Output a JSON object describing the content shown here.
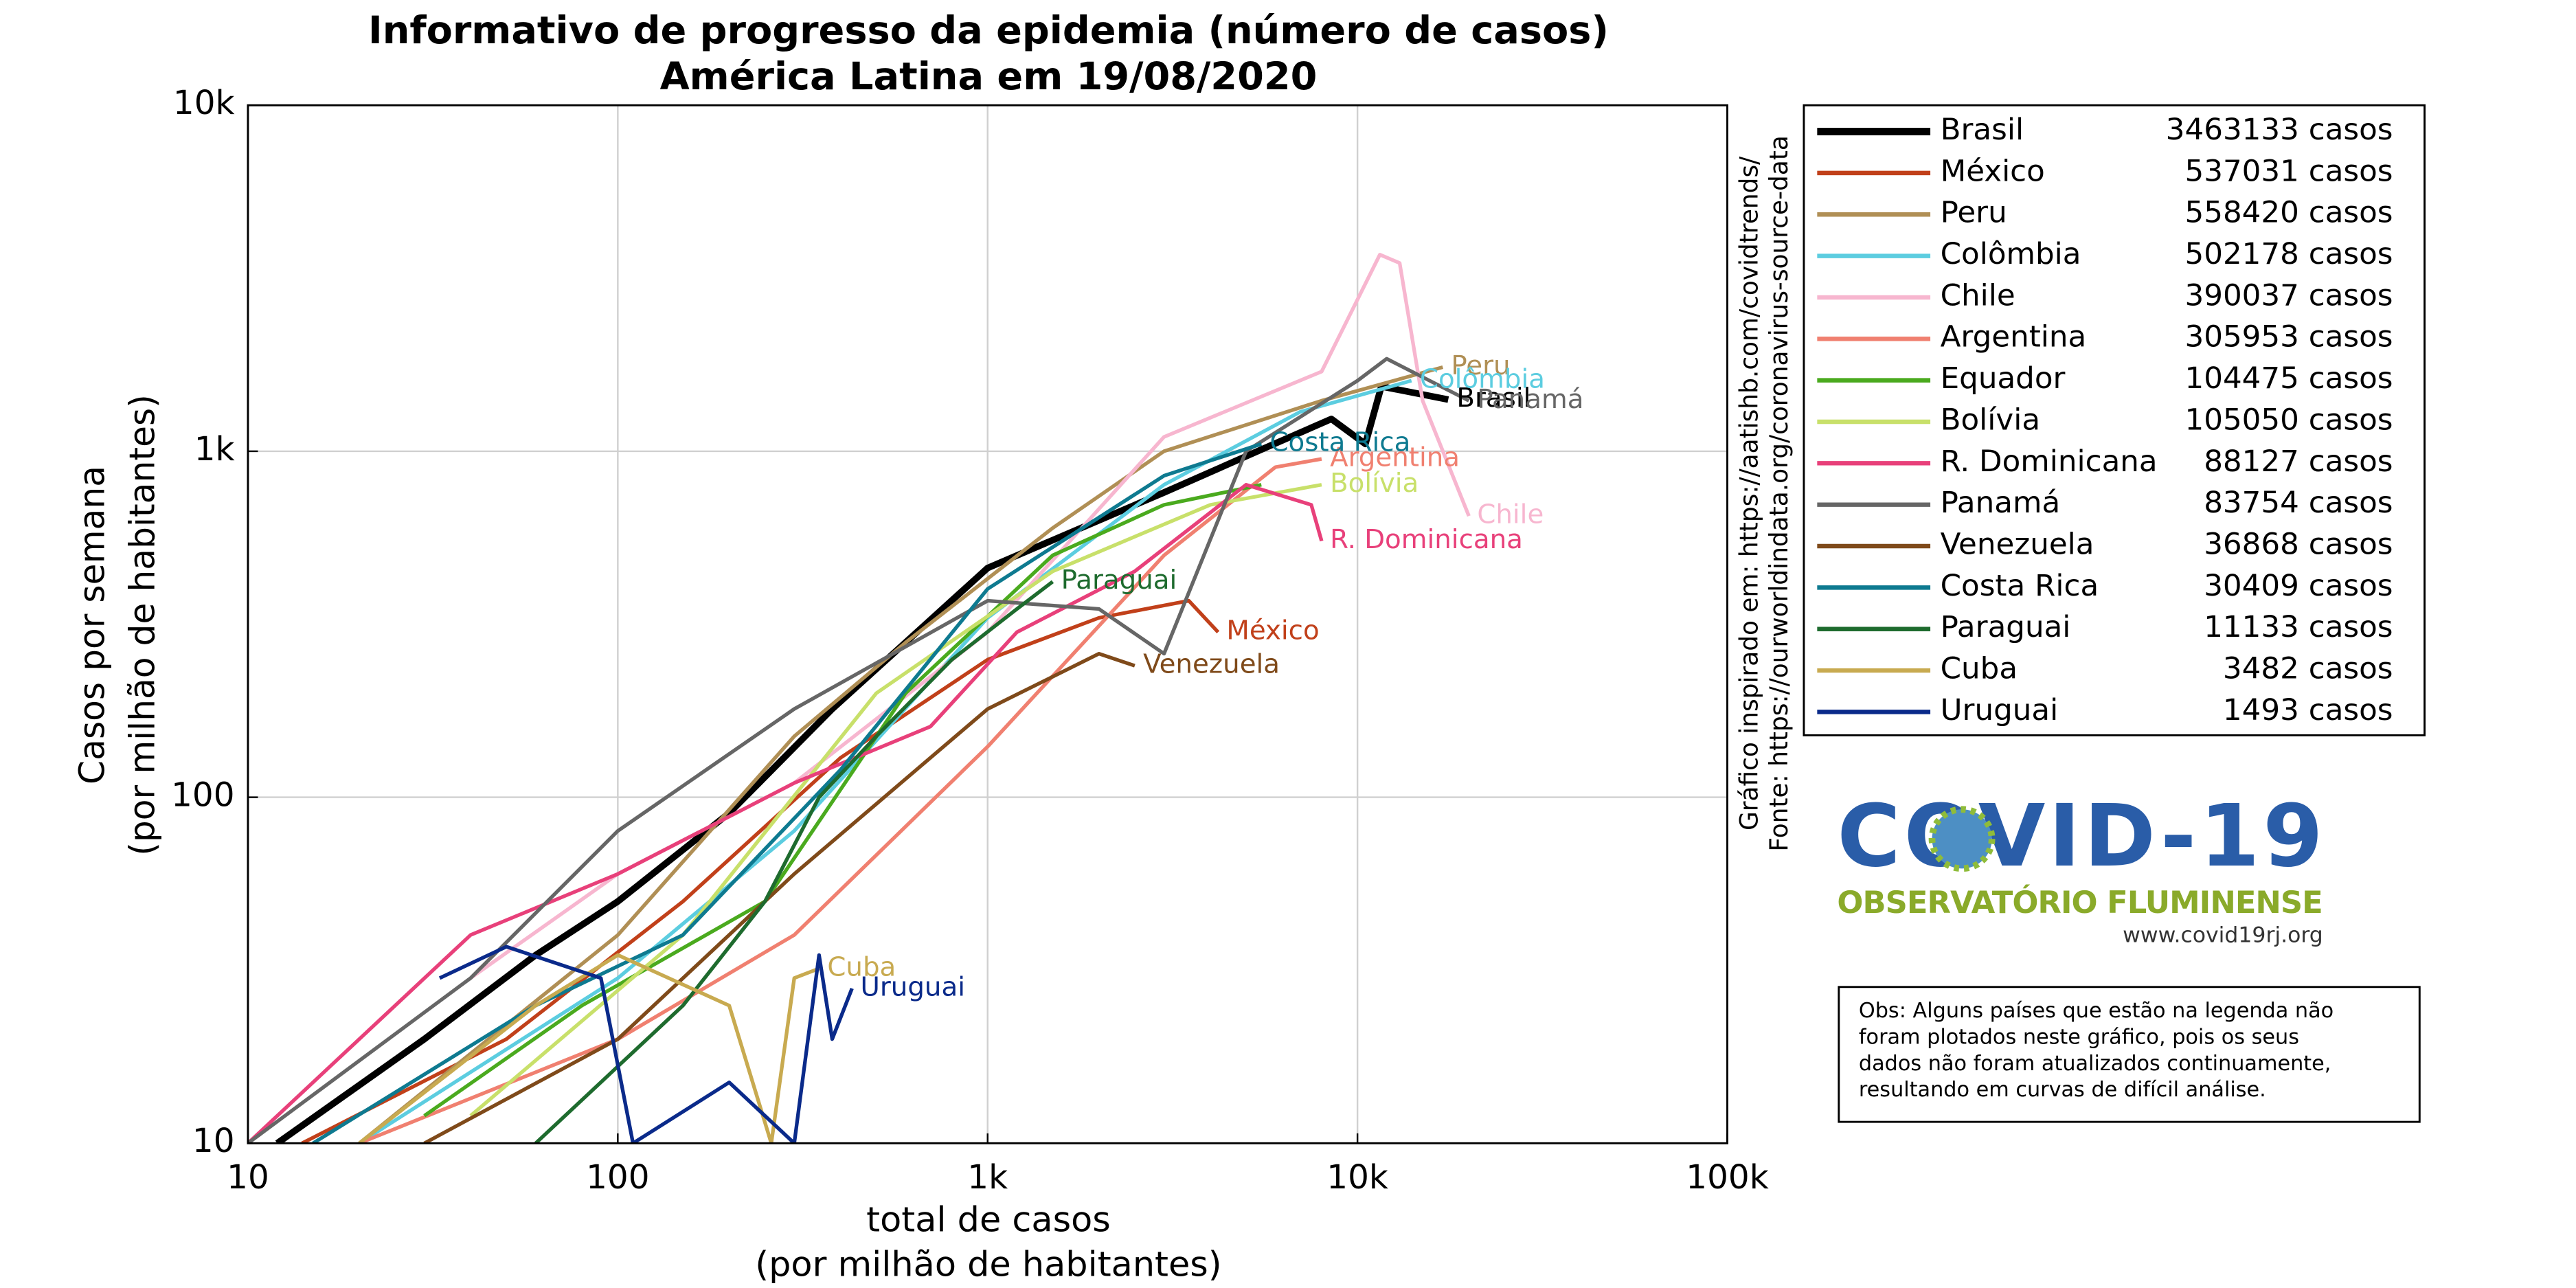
{
  "chart_data": {
    "type": "line",
    "title": "Informativo de progresso da epidemia (número de casos)",
    "subtitle": "América Latina em 19/08/2020",
    "xlabel": [
      "total de casos",
      "(por milhão de habitantes)"
    ],
    "ylabel": [
      "Casos por semana",
      "(por milhão de habitantes)"
    ],
    "xscale": "log",
    "yscale": "log",
    "grid": true,
    "legend": "right",
    "xlim": [
      10,
      100000
    ],
    "ylim": [
      10,
      10000
    ],
    "xticks": [
      10,
      100,
      {
        "value": 1000,
        "label": "1k"
      },
      {
        "value": 10000,
        "label": "10k"
      },
      {
        "value": 100000,
        "label": "100k"
      }
    ],
    "yticks": [
      10,
      100,
      {
        "value": 1000,
        "label": "1k"
      },
      {
        "value": 10000,
        "label": "10k"
      }
    ],
    "series": [
      {
        "name": "Brasil",
        "color": "#000000",
        "width": 4,
        "total": {
          "value": 3463133,
          "label": "3463133 casos"
        },
        "end_label": true,
        "x": [
          12,
          30,
          60,
          100,
          200,
          380,
          1000,
          3000,
          5600,
          8500,
          10500,
          11600,
          17600
        ],
        "values": [
          10,
          20,
          35,
          50,
          90,
          180,
          460,
          760,
          1020,
          1240,
          1050,
          1540,
          1410
        ]
      },
      {
        "name": "México",
        "color": "#c1401a",
        "width": 2.2,
        "total": {
          "value": 537031,
          "label": "537031 casos"
        },
        "end_label": true,
        "x": [
          14,
          50,
          150,
          400,
          1000,
          2000,
          3500,
          4200
        ],
        "values": [
          10,
          20,
          50,
          130,
          250,
          330,
          370,
          300
        ]
      },
      {
        "name": "Peru",
        "color": "#b08f55",
        "width": 2.2,
        "total": {
          "value": 558420,
          "label": "558420 casos"
        },
        "end_label": true,
        "x": [
          20,
          100,
          300,
          600,
          1500,
          3000,
          8000,
          17000
        ],
        "values": [
          10,
          40,
          150,
          280,
          600,
          1000,
          1400,
          1750
        ]
      },
      {
        "name": "Colômbia",
        "color": "#5ccde0",
        "width": 2.2,
        "total": {
          "value": 502178,
          "label": "502178 casos"
        },
        "end_label": true,
        "x": [
          20,
          100,
          300,
          1000,
          3000,
          7000,
          14000
        ],
        "values": [
          10,
          30,
          80,
          330,
          800,
          1300,
          1600
        ]
      },
      {
        "name": "Chile",
        "color": "#f7b6cf",
        "width": 2.2,
        "total": {
          "value": 390037,
          "label": "390037 casos"
        },
        "end_label": true,
        "x": [
          40,
          100,
          300,
          1000,
          3000,
          8000,
          11500,
          13000,
          15000,
          20000
        ],
        "values": [
          30,
          60,
          110,
          300,
          1100,
          1700,
          3700,
          3500,
          1400,
          650
        ]
      },
      {
        "name": "Argentina",
        "color": "#f08070",
        "width": 2.2,
        "total": {
          "value": 305953,
          "label": "305953 casos"
        },
        "end_label": true,
        "x": [
          20,
          100,
          300,
          1000,
          3000,
          6000,
          8000
        ],
        "values": [
          10,
          20,
          40,
          140,
          500,
          900,
          950
        ]
      },
      {
        "name": "Equador",
        "color": "#4aaa1e",
        "width": 2.2,
        "total": {
          "value": 104475,
          "label": "104475 casos"
        },
        "end_label": false,
        "x": [
          30,
          80,
          250,
          600,
          1500,
          3000,
          5500
        ],
        "values": [
          12,
          25,
          50,
          200,
          500,
          700,
          800
        ]
      },
      {
        "name": "Bolívia",
        "color": "#c8e06a",
        "width": 2.2,
        "total": {
          "value": 105050,
          "label": "105050 casos"
        },
        "end_label": true,
        "x": [
          40,
          150,
          500,
          1500,
          4000,
          8000
        ],
        "values": [
          12,
          40,
          200,
          450,
          700,
          800
        ]
      },
      {
        "name": "R. Dominicana",
        "color": "#e8407a",
        "width": 2.2,
        "total": {
          "value": 88127,
          "label": "88127 casos"
        },
        "end_label": true,
        "x": [
          10,
          40,
          100,
          300,
          700,
          1200,
          2500,
          5000,
          7500,
          8000
        ],
        "values": [
          10,
          40,
          60,
          110,
          160,
          300,
          450,
          800,
          700,
          550
        ]
      },
      {
        "name": "Panamá",
        "color": "#666666",
        "width": 2.2,
        "total": {
          "value": 83754,
          "label": "83754 casos"
        },
        "end_label": true,
        "x": [
          10,
          40,
          100,
          300,
          1000,
          2000,
          3000,
          5000,
          10000,
          12000,
          20000
        ],
        "values": [
          10,
          30,
          80,
          180,
          370,
          350,
          260,
          1000,
          1600,
          1850,
          1400
        ]
      },
      {
        "name": "Venezuela",
        "color": "#7f4a1a",
        "width": 2.2,
        "total": {
          "value": 36868,
          "label": "36868 casos"
        },
        "end_label": true,
        "x": [
          30,
          100,
          300,
          1000,
          2000,
          2500
        ],
        "values": [
          10,
          20,
          60,
          180,
          260,
          240
        ]
      },
      {
        "name": "Costa Rica",
        "color": "#0e7a90",
        "width": 2.2,
        "total": {
          "value": 30409,
          "label": "30409 casos"
        },
        "end_label": true,
        "x": [
          15,
          60,
          150,
          400,
          1000,
          3000,
          5500
        ],
        "values": [
          10,
          25,
          40,
          120,
          400,
          850,
          1050
        ]
      },
      {
        "name": "Paraguai",
        "color": "#1e6b2e",
        "width": 2.2,
        "total": {
          "value": 11133,
          "label": "11133 casos"
        },
        "end_label": true,
        "x": [
          60,
          150,
          250,
          350,
          500,
          800,
          1200,
          1500
        ],
        "values": [
          10,
          25,
          50,
          100,
          150,
          250,
          350,
          420
        ]
      },
      {
        "name": "Cuba",
        "color": "#c8aa50",
        "width": 2.2,
        "total": {
          "value": 3482,
          "label": "3482 casos"
        },
        "end_label": true,
        "x": [
          20,
          60,
          100,
          200,
          260,
          300,
          350
        ],
        "values": [
          10,
          25,
          35,
          25,
          10,
          30,
          32
        ]
      },
      {
        "name": "Uruguai",
        "color": "#0a2a8a",
        "width": 2.2,
        "total": {
          "value": 1493,
          "label": "1493 casos"
        },
        "end_label": true,
        "x": [
          33,
          50,
          90,
          110,
          200,
          300,
          350,
          380,
          430
        ],
        "values": [
          30,
          37,
          30,
          10,
          15,
          10,
          35,
          20,
          28
        ]
      }
    ]
  },
  "credits": [
    "Gráfico inspirado em: https://aatishb.com/covidtrends/",
    "Fonte: https://ourworldindata.org/coronavirus-source-data"
  ],
  "logo": {
    "title": "COVID-19",
    "subtitle": "OBSERVATÓRIO FLUMINENSE",
    "url": "www.covid19rj.org"
  },
  "note": [
    "Obs: Alguns países que estão na legenda não",
    "foram plotados neste gráfico, pois os seus",
    "dados não foram atualizados continuamente,",
    "resultando em curvas de difícil análise."
  ]
}
